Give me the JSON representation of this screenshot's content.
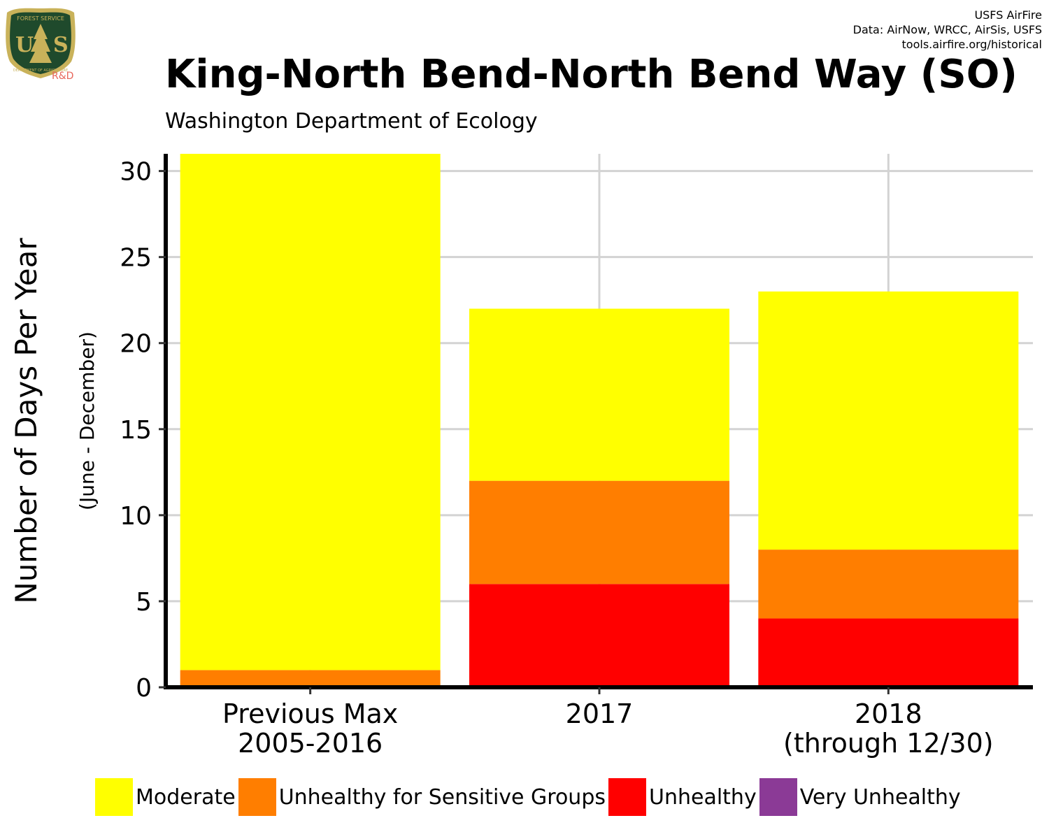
{
  "credits": {
    "line1": "USFS AirFire",
    "line2": "Data: AirNow, WRCC, AirSis, USFS",
    "line3": "tools.airfire.org/historical"
  },
  "logo": {
    "top_text": "FOREST SERVICE",
    "letters": "U  S",
    "bottom_text": "DEPARTMENT OF AGRICULTURE",
    "rd": "R&D"
  },
  "title": "King-North Bend-North Bend Way (SO)",
  "subtitle": "Washington Department of Ecology",
  "chart_data": {
    "type": "bar",
    "stacked": true,
    "ylabel": "Number of Days Per Year",
    "ylabel_sub": "(June - December)",
    "ylim": [
      0,
      31
    ],
    "yticks": [
      0,
      5,
      10,
      15,
      20,
      25,
      30
    ],
    "grid": true,
    "categories": [
      [
        "Previous Max",
        "2005-2016"
      ],
      [
        "2017"
      ],
      [
        "2018",
        "(through 12/30)"
      ]
    ],
    "series": [
      {
        "name": "Very Unhealthy",
        "color": "#8B3A96",
        "values": [
          0,
          0,
          0
        ]
      },
      {
        "name": "Unhealthy",
        "color": "#FF0000",
        "values": [
          0,
          6,
          4
        ]
      },
      {
        "name": "Unhealthy for Sensitive Groups",
        "color": "#FF7E00",
        "values": [
          1,
          6,
          4
        ]
      },
      {
        "name": "Moderate",
        "color": "#FFFF00",
        "values": [
          30,
          10,
          15
        ]
      }
    ],
    "legend": {
      "placement": "bottom",
      "order": [
        "Moderate",
        "Unhealthy for Sensitive Groups",
        "Unhealthy",
        "Very Unhealthy"
      ]
    }
  }
}
